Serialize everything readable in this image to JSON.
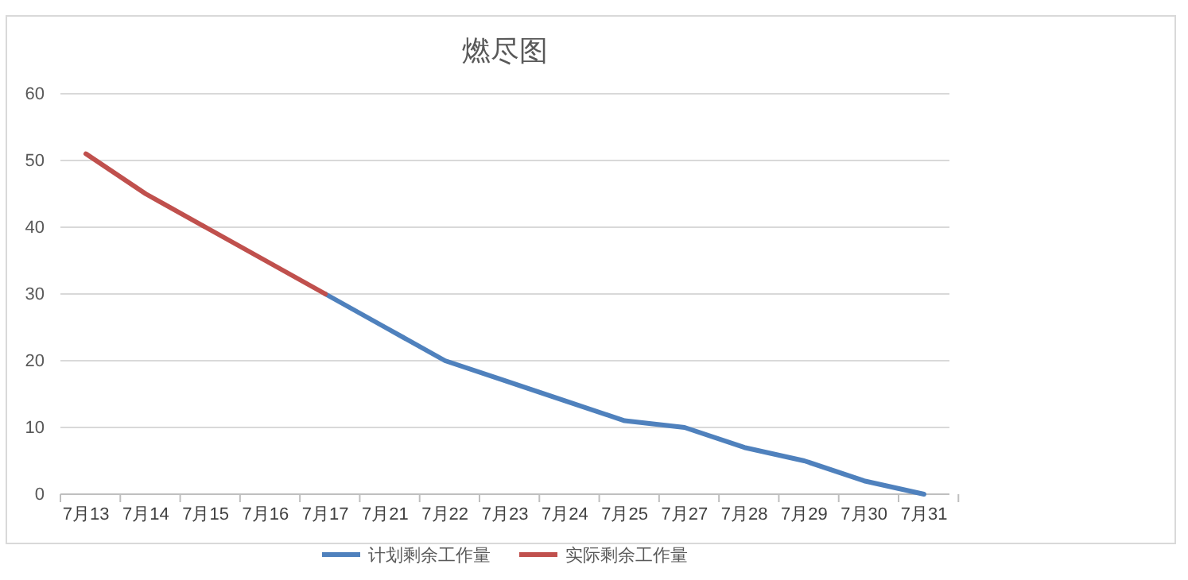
{
  "chart_data": {
    "type": "line",
    "title": "燃尽图",
    "categories": [
      "7月13",
      "7月14",
      "7月15",
      "7月16",
      "7月17",
      "7月21",
      "7月22",
      "7月23",
      "7月24",
      "7月25",
      "7月27",
      "7月28",
      "7月29",
      "7月30",
      "7月31"
    ],
    "series": [
      {
        "name": "计划剩余工作量",
        "color": "#4f81bd",
        "values": [
          null,
          null,
          null,
          null,
          30,
          25,
          20,
          17,
          14,
          11,
          10,
          7,
          5,
          2,
          0
        ]
      },
      {
        "name": "实际剩余工作量",
        "color": "#c0504d",
        "values": [
          51,
          45,
          40,
          35,
          30,
          null,
          null,
          null,
          null,
          null,
          null,
          null,
          null,
          null,
          null
        ]
      }
    ],
    "ylim": [
      0,
      60
    ],
    "yticks": [
      0,
      10,
      20,
      30,
      40,
      50,
      60
    ],
    "grid": "y",
    "legend": "bottom",
    "marker": "none",
    "line_style": "solid"
  }
}
